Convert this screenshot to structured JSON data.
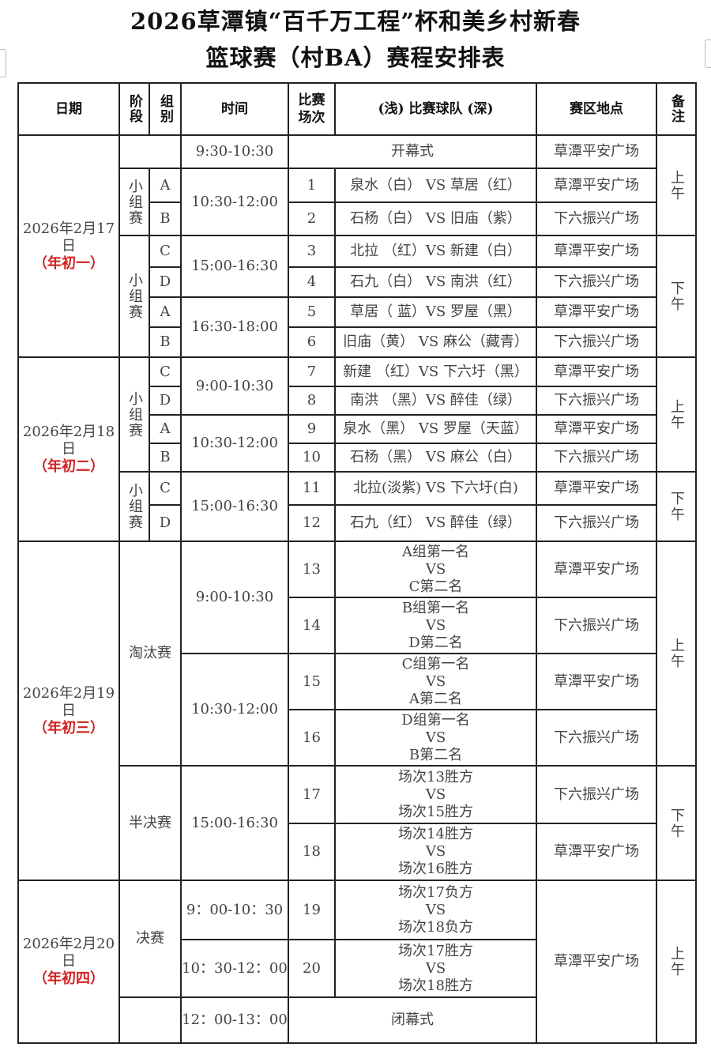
{
  "title": {
    "line1": "2026草潭镇“百千万工程”杯和美乡村新春",
    "line2": "篮球赛（村BA）赛程安排表"
  },
  "headers": {
    "date": "日期",
    "stage": "阶段",
    "group": "组别",
    "time": "时间",
    "match_no": "比赛场次",
    "teams": "(浅) 比赛球队 (深)",
    "venue": "赛区地点",
    "note": "备注"
  },
  "days": [
    {
      "date": "2026年2月17日",
      "lunar": "（年初一）"
    },
    {
      "date": "2026年2月18日",
      "lunar": "（年初二）"
    },
    {
      "date": "2026年2月19日",
      "lunar": "（年初三）"
    },
    {
      "date": "2026年2月20日",
      "lunar": "（年初四）"
    }
  ],
  "stages": {
    "group": "小组赛",
    "knockout": "淘汰赛",
    "semi": "半决赛",
    "final": "决赛"
  },
  "notes": {
    "am": "上午",
    "pm": "下午"
  },
  "ceremonies": {
    "opening": "开幕式",
    "closing": "闭幕式",
    "opening_time": "9:30-10:30",
    "closing_time": "12：00-13：00"
  },
  "times": [
    "10:30-12:00",
    "15:00-16:30",
    "16:30-18:00",
    "9:00-10:30",
    "10:30-12:00",
    "15:00-16:30",
    "9:00-10:30",
    "10:30-12:00",
    "15:00-16:30",
    "9：00-10：30",
    "10：30-12：00"
  ],
  "venues": {
    "a": "草潭平安广场",
    "b": "下六振兴广场"
  },
  "matches": [
    {
      "no": "1",
      "group": "A",
      "teams": "泉水（白） VS 草居（红）",
      "venue": "草潭平安广场"
    },
    {
      "no": "2",
      "group": "B",
      "teams": "石杨（白） VS 旧庙（紫）",
      "venue": "下六振兴广场"
    },
    {
      "no": "3",
      "group": "C",
      "teams": "北拉 （红）VS 新建（白）",
      "venue": "草潭平安广场"
    },
    {
      "no": "4",
      "group": "D",
      "teams": "石九（白） VS 南洪（红）",
      "venue": "下六振兴广场"
    },
    {
      "no": "5",
      "group": "A",
      "teams": "草居（  蓝）VS 罗屋（黑）",
      "venue": "草潭平安广场"
    },
    {
      "no": "6",
      "group": "B",
      "teams": "旧庙（黄） VS 麻公（藏青）",
      "venue": "下六振兴广场"
    },
    {
      "no": "7",
      "group": "C",
      "teams": "新建 （红）VS 下六圩（黑）",
      "venue": "草潭平安广场"
    },
    {
      "no": "8",
      "group": "D",
      "teams": "南洪 （黑）VS 醉佳（绿）",
      "venue": "下六振兴广场"
    },
    {
      "no": "9",
      "group": "A",
      "teams": "泉水（黑） VS 罗屋（天蓝）",
      "venue": "草潭平安广场"
    },
    {
      "no": "10",
      "group": "B",
      "teams": "石杨（黑） VS 麻公（白）",
      "venue": "下六振兴广场"
    },
    {
      "no": "11",
      "group": "C",
      "teams": "北拉(淡紫) VS 下六圩(白)",
      "venue": "草潭平安广场"
    },
    {
      "no": "12",
      "group": "D",
      "teams": "石九（红） VS 醉佳（绿）",
      "venue": "下六振兴广场"
    },
    {
      "no": "13",
      "teams": [
        "A组第一名",
        "VS",
        "C第二名"
      ],
      "venue": "草潭平安广场"
    },
    {
      "no": "14",
      "teams": [
        "B组第一名",
        "VS",
        "D第二名"
      ],
      "venue": "下六振兴广场"
    },
    {
      "no": "15",
      "teams": [
        "C组第一名",
        "VS",
        "A第二名"
      ],
      "venue": "草潭平安广场"
    },
    {
      "no": "16",
      "teams": [
        "D组第一名",
        "VS",
        "B第二名"
      ],
      "venue": "下六振兴广场"
    },
    {
      "no": "17",
      "teams": [
        "场次13胜方",
        "VS",
        "场次15胜方"
      ],
      "venue": "下六振兴广场"
    },
    {
      "no": "18",
      "teams": [
        "场次14胜方",
        "VS",
        "场次16胜方"
      ],
      "venue": "草潭平安广场"
    },
    {
      "no": "19",
      "teams": [
        "场次17负方",
        "VS",
        "场次18负方"
      ]
    },
    {
      "no": "20",
      "teams": [
        "场次17胜方",
        "VS",
        "场次18胜方"
      ]
    }
  ],
  "final_venue": "草潭平安广场"
}
